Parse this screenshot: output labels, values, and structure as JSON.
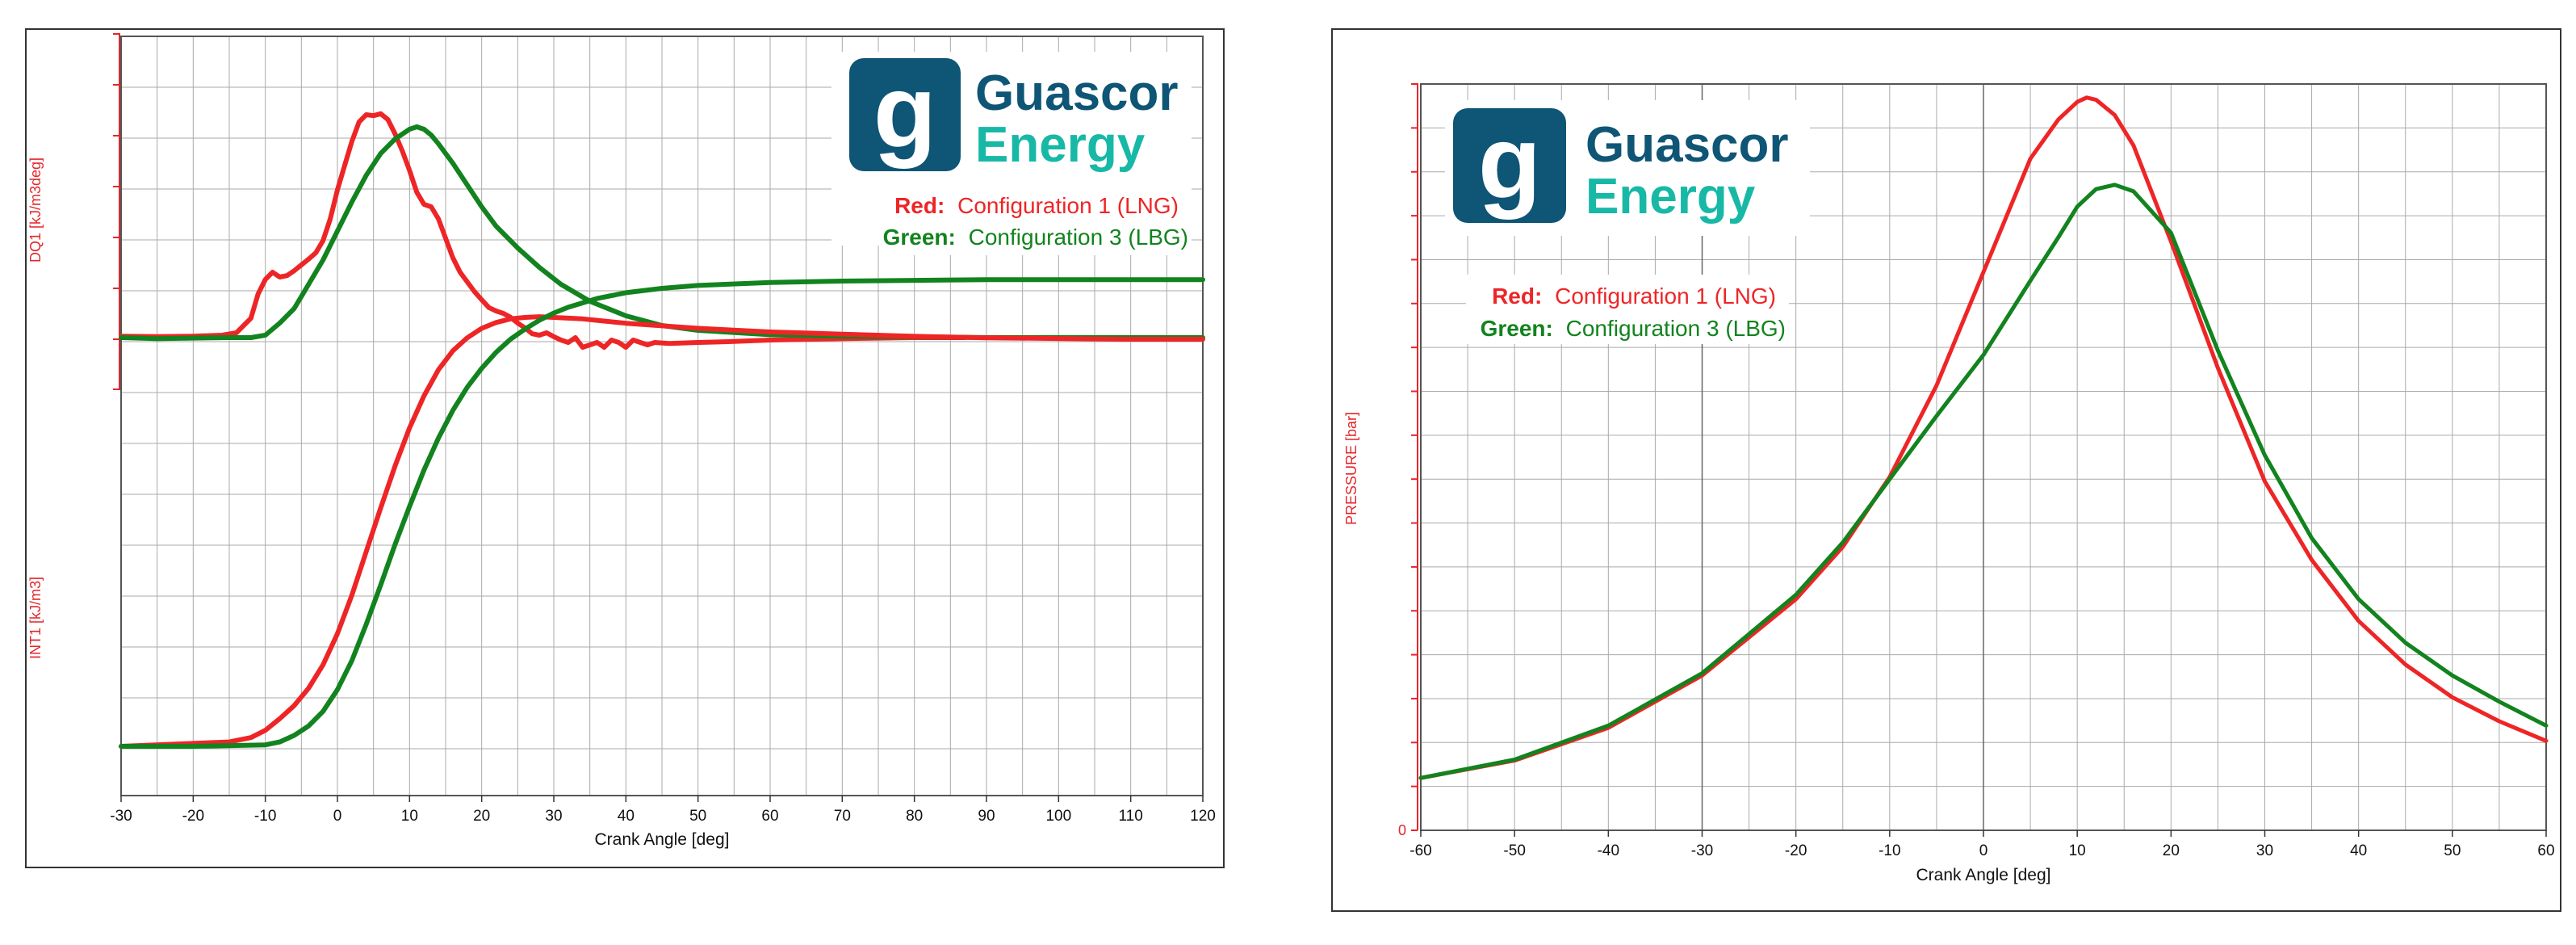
{
  "colors": {
    "lng": "#ee2526",
    "lbg": "#12831e",
    "brand_box": "#0f5575",
    "brand_dark": "#0f5575",
    "brand_teal": "#17b8a6",
    "axis_red": "#e3262b",
    "grid": "#aaaaaa"
  },
  "icons": {
    "logo": "guascor-g-logo-icon"
  },
  "chart_data": [
    {
      "type": "line",
      "title": "",
      "xlabel": "Crank Angle [deg]",
      "xlim": [
        -30,
        120
      ],
      "xticks": [
        -30,
        -20,
        -10,
        0,
        10,
        20,
        30,
        40,
        50,
        60,
        70,
        80,
        90,
        100,
        110,
        120
      ],
      "ylabel_top": "DQ1 [kJ/m3deg]",
      "ylabel_bottom": "INT1 [kJ/m3]",
      "brand": {
        "word1": "Guascor",
        "word2": "Energy",
        "letter": "g"
      },
      "legend": {
        "red_key": "Red:",
        "red_text": "Configuration 1 (LNG)",
        "green_key": "Green:",
        "green_text": "Configuration 3 (LBG)"
      },
      "series": [
        {
          "name": "DQ1 Configuration 1 (LNG)",
          "color": "lng",
          "x": [
            -30,
            -25,
            -20,
            -16,
            -14,
            -12,
            -11,
            -10,
            -9,
            -8,
            -7,
            -6,
            -5,
            -4,
            -3,
            -2,
            -1,
            0,
            1,
            2,
            3,
            4,
            5,
            6,
            7,
            8,
            9,
            10,
            11,
            12,
            13,
            14,
            15,
            16,
            17,
            18,
            19,
            20,
            21,
            22,
            23,
            24,
            25,
            26,
            27,
            28,
            29,
            30,
            31,
            32,
            33,
            34,
            35,
            36,
            37,
            38,
            39,
            40,
            41,
            42,
            43,
            44,
            46,
            50,
            55,
            60,
            70,
            80,
            85,
            87
          ],
          "y": [
            0.03,
            0.02,
            0.03,
            0.05,
            0.1,
            0.4,
            0.9,
            1.2,
            1.35,
            1.25,
            1.28,
            1.38,
            1.5,
            1.62,
            1.75,
            2.0,
            2.45,
            3.05,
            3.55,
            4.05,
            4.45,
            4.6,
            4.58,
            4.62,
            4.5,
            4.2,
            3.85,
            3.45,
            3.0,
            2.75,
            2.7,
            2.45,
            2.05,
            1.65,
            1.35,
            1.15,
            0.95,
            0.78,
            0.62,
            0.55,
            0.5,
            0.42,
            0.3,
            0.2,
            0.08,
            0.05,
            0.1,
            0.02,
            -0.05,
            -0.1,
            0.0,
            -0.2,
            -0.15,
            -0.1,
            -0.2,
            -0.05,
            -0.1,
            -0.2,
            -0.05,
            -0.1,
            -0.15,
            -0.1,
            -0.12,
            -0.1,
            -0.08,
            -0.05,
            -0.02,
            0.0,
            0.0,
            0.0
          ]
        },
        {
          "name": "DQ1 Configuration 3 (LBG)",
          "color": "lbg",
          "x": [
            -30,
            -25,
            -20,
            -15,
            -12,
            -10,
            -8,
            -6,
            -4,
            -2,
            0,
            2,
            4,
            6,
            8,
            10,
            11,
            12,
            13,
            14,
            16,
            18,
            20,
            22,
            25,
            28,
            31,
            35,
            40,
            45,
            50,
            60,
            70,
            80,
            90,
            100,
            110,
            120
          ],
          "y": [
            0.0,
            -0.02,
            -0.01,
            0.0,
            0.0,
            0.05,
            0.3,
            0.6,
            1.1,
            1.6,
            2.2,
            2.8,
            3.35,
            3.8,
            4.1,
            4.3,
            4.35,
            4.3,
            4.18,
            4.0,
            3.6,
            3.15,
            2.7,
            2.3,
            1.85,
            1.45,
            1.1,
            0.75,
            0.45,
            0.25,
            0.15,
            0.06,
            0.03,
            0.02,
            0.0,
            0.0,
            0.0,
            0.0
          ]
        },
        {
          "name": "INT1 Configuration 1 (LNG)",
          "color": "lng",
          "x": [
            -30,
            -20,
            -15,
            -12,
            -10,
            -8,
            -6,
            -4,
            -2,
            0,
            2,
            4,
            6,
            8,
            10,
            12,
            14,
            16,
            18,
            20,
            22,
            24,
            26,
            28,
            30,
            32,
            34,
            36,
            40,
            50,
            60,
            70,
            80,
            90,
            100,
            110,
            120
          ],
          "y": [
            0.0,
            0.04,
            0.06,
            0.12,
            0.22,
            0.38,
            0.56,
            0.8,
            1.12,
            1.55,
            2.08,
            2.68,
            3.28,
            3.86,
            4.38,
            4.82,
            5.18,
            5.44,
            5.62,
            5.75,
            5.83,
            5.88,
            5.9,
            5.91,
            5.9,
            5.89,
            5.88,
            5.86,
            5.82,
            5.75,
            5.7,
            5.67,
            5.64,
            5.62,
            5.61,
            5.6,
            5.6
          ]
        },
        {
          "name": "INT1 Configuration 3 (LBG)",
          "color": "lbg",
          "x": [
            -30,
            -20,
            -10,
            -8,
            -6,
            -4,
            -2,
            0,
            2,
            4,
            6,
            8,
            10,
            12,
            14,
            16,
            18,
            20,
            22,
            24,
            26,
            28,
            30,
            32,
            34,
            36,
            38,
            40,
            45,
            50,
            60,
            70,
            80,
            90,
            100,
            110,
            120
          ],
          "y": [
            0.0,
            0.0,
            0.02,
            0.06,
            0.15,
            0.28,
            0.48,
            0.78,
            1.18,
            1.68,
            2.22,
            2.78,
            3.3,
            3.8,
            4.24,
            4.62,
            4.94,
            5.2,
            5.42,
            5.6,
            5.74,
            5.86,
            5.96,
            6.04,
            6.1,
            6.16,
            6.2,
            6.24,
            6.3,
            6.34,
            6.38,
            6.4,
            6.41,
            6.42,
            6.42,
            6.42,
            6.42
          ]
        }
      ]
    },
    {
      "type": "line",
      "title": "",
      "xlabel": "Crank Angle [deg]",
      "xlim": [
        -60,
        60
      ],
      "xticks": [
        -60,
        -50,
        -40,
        -30,
        -20,
        -10,
        0,
        10,
        20,
        30,
        40,
        50,
        60
      ],
      "ylabel": "PRESSURE [bar]",
      "ytick_zero": "0",
      "brand": {
        "word1": "Guascor",
        "word2": "Energy",
        "letter": "g"
      },
      "legend": {
        "red_key": "Red:",
        "red_text": "Configuration 1 (LNG)",
        "green_key": "Green:",
        "green_text": "Configuration 3 (LBG)"
      },
      "series": [
        {
          "name": "Configuration 1 (LNG)",
          "color": "lng",
          "x": [
            -60,
            -50,
            -40,
            -30,
            -20,
            -15,
            -10,
            -5,
            0,
            5,
            8,
            10,
            11,
            12,
            14,
            16,
            20,
            25,
            30,
            35,
            40,
            45,
            50,
            55,
            60
          ],
          "y": [
            1.2,
            1.6,
            2.35,
            3.55,
            5.3,
            6.5,
            8.1,
            10.2,
            12.8,
            15.4,
            16.3,
            16.7,
            16.8,
            16.75,
            16.4,
            15.7,
            13.5,
            10.6,
            8.0,
            6.2,
            4.8,
            3.8,
            3.05,
            2.5,
            2.05
          ]
        },
        {
          "name": "Configuration 3 (LBG)",
          "color": "lbg",
          "x": [
            -60,
            -50,
            -40,
            -30,
            -20,
            -15,
            -10,
            -5,
            0,
            5,
            8,
            10,
            12,
            14,
            16,
            20,
            25,
            30,
            35,
            40,
            45,
            50,
            55,
            60
          ],
          "y": [
            1.2,
            1.62,
            2.4,
            3.6,
            5.4,
            6.6,
            8.05,
            9.5,
            10.9,
            12.6,
            13.6,
            14.3,
            14.7,
            14.8,
            14.65,
            13.7,
            11.0,
            8.6,
            6.7,
            5.3,
            4.3,
            3.55,
            2.95,
            2.4
          ]
        }
      ]
    }
  ]
}
